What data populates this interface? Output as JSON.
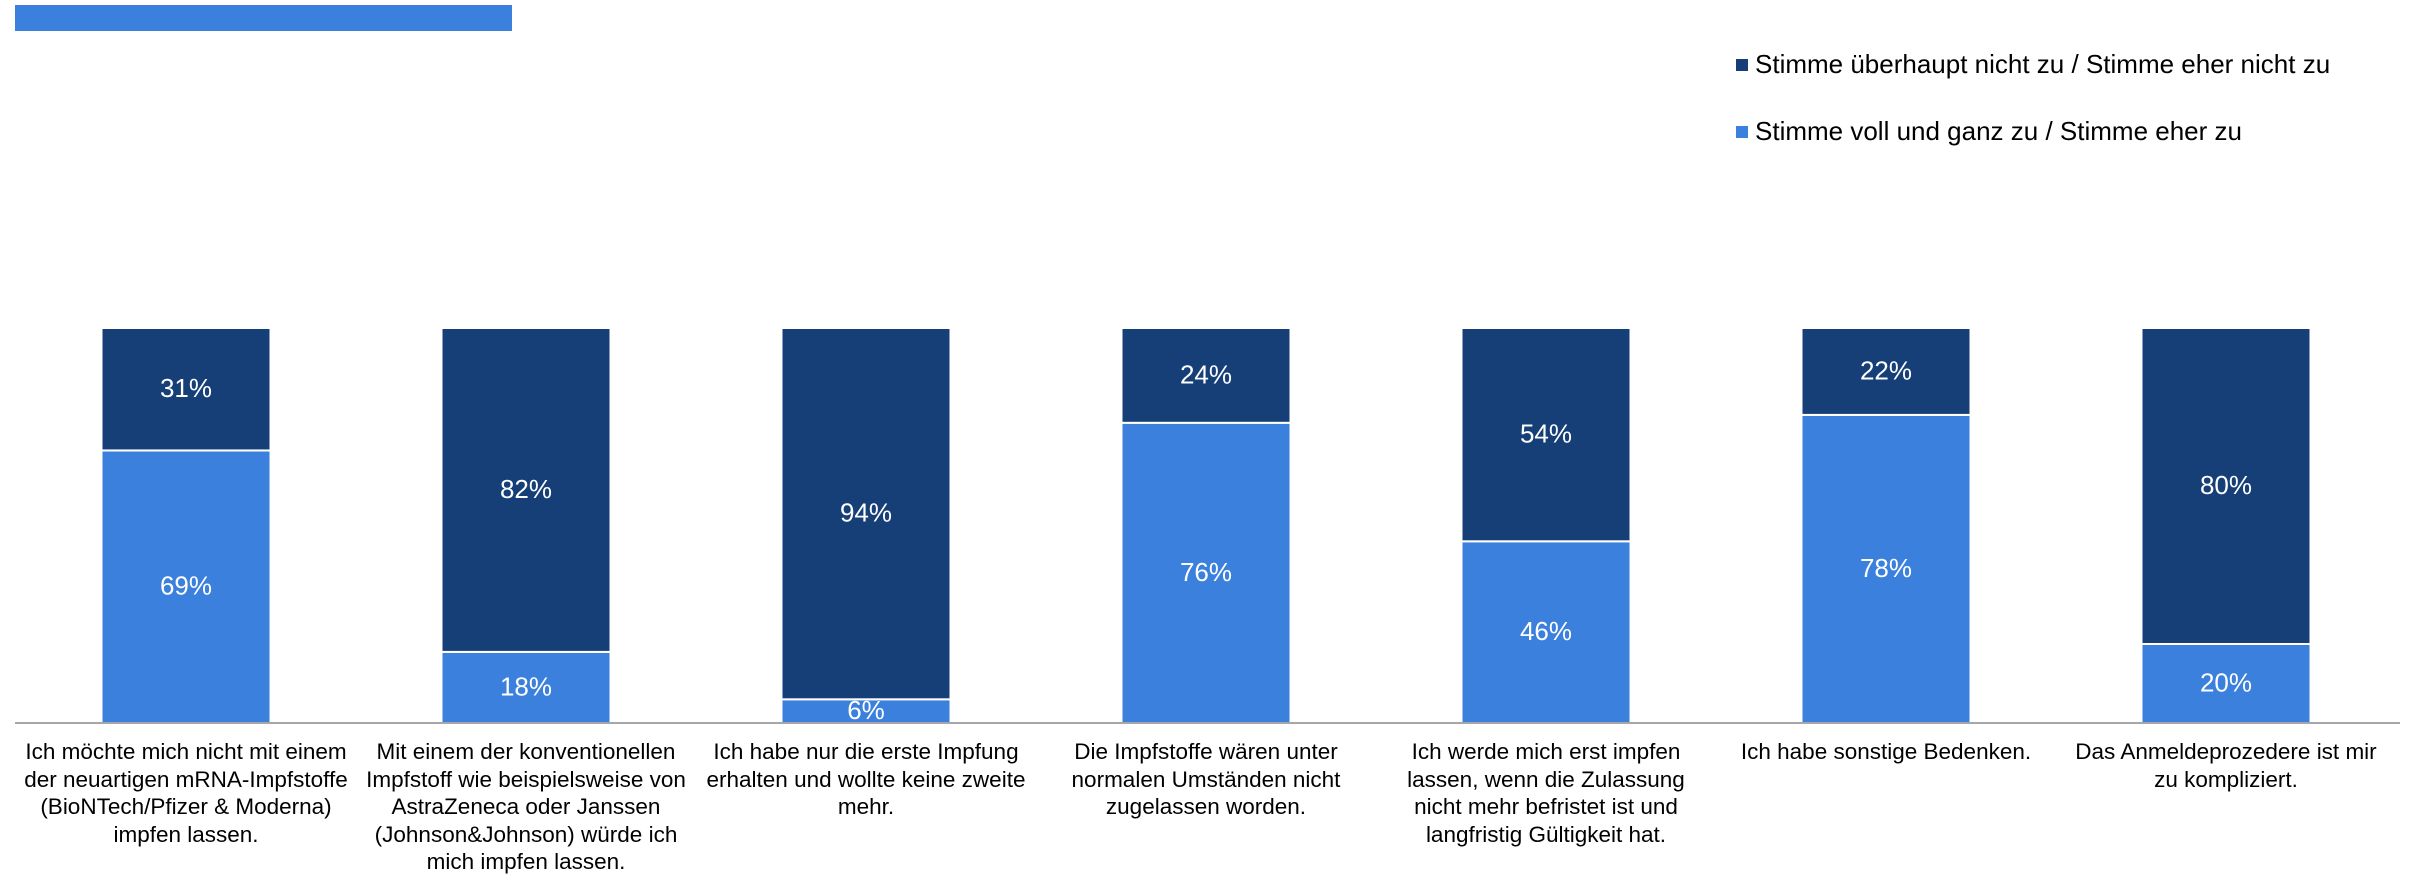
{
  "chart_data": {
    "type": "stacked_bar",
    "categories": [
      "Ich möchte mich nicht mit einem der neuartigen mRNA-Impfstoffe (BioNTech/Pfizer & Moderna) impfen lassen.",
      "Mit einem der konventionellen Impfstoff wie beispielsweise von AstraZeneca oder Janssen (Johnson&Johnson) würde ich mich impfen lassen.",
      "Ich habe nur die erste Impfung erhalten und wollte keine zweite mehr.",
      "Die Impfstoffe wären unter normalen Umständen nicht zugelassen worden.",
      "Ich werde mich erst impfen lassen, wenn die Zulassung nicht mehr befristet ist und langfristig Gültigkeit hat.",
      "Ich habe sonstige Bedenken.",
      "Das Anmeldeprozedere ist mir zu kompliziert."
    ],
    "series": [
      {
        "name": "Stimme voll und ganz zu / Stimme eher zu",
        "color": "#3b80dc",
        "values": [
          69,
          18,
          6,
          76,
          46,
          78,
          20
        ],
        "value_labels": [
          "69%",
          "18%",
          "6%",
          "76%",
          "46%",
          "78%",
          "20%"
        ]
      },
      {
        "name": "Stimme überhaupt nicht zu / Stimme eher nicht zu",
        "color": "#163f78",
        "values": [
          31,
          82,
          94,
          24,
          54,
          22,
          80
        ],
        "value_labels": [
          "31%",
          "82%",
          "94%",
          "24%",
          "54%",
          "22%",
          "80%"
        ]
      }
    ],
    "ylim": [
      0,
      100
    ]
  }
}
